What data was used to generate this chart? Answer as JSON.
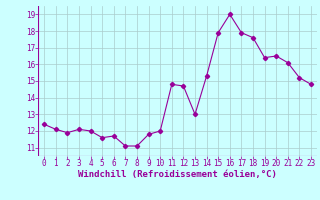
{
  "x": [
    0,
    1,
    2,
    3,
    4,
    5,
    6,
    7,
    8,
    9,
    10,
    11,
    12,
    13,
    14,
    15,
    16,
    17,
    18,
    19,
    20,
    21,
    22,
    23
  ],
  "y": [
    12.4,
    12.1,
    11.9,
    12.1,
    12.0,
    11.6,
    11.7,
    11.1,
    11.1,
    11.8,
    12.0,
    14.8,
    14.7,
    13.0,
    15.3,
    17.9,
    19.0,
    17.9,
    17.6,
    16.4,
    16.5,
    16.1,
    15.2,
    14.8
  ],
  "line_color": "#990099",
  "marker": "D",
  "marker_size": 2.2,
  "bg_color": "#ccffff",
  "grid_color": "#aacccc",
  "xlabel": "Windchill (Refroidissement éolien,°C)",
  "xlabel_fontsize": 6.5,
  "tick_fontsize": 5.5,
  "xlim": [
    -0.5,
    23.5
  ],
  "ylim": [
    10.5,
    19.5
  ],
  "yticks": [
    11,
    12,
    13,
    14,
    15,
    16,
    17,
    18,
    19
  ],
  "xticks": [
    0,
    1,
    2,
    3,
    4,
    5,
    6,
    7,
    8,
    9,
    10,
    11,
    12,
    13,
    14,
    15,
    16,
    17,
    18,
    19,
    20,
    21,
    22,
    23
  ]
}
